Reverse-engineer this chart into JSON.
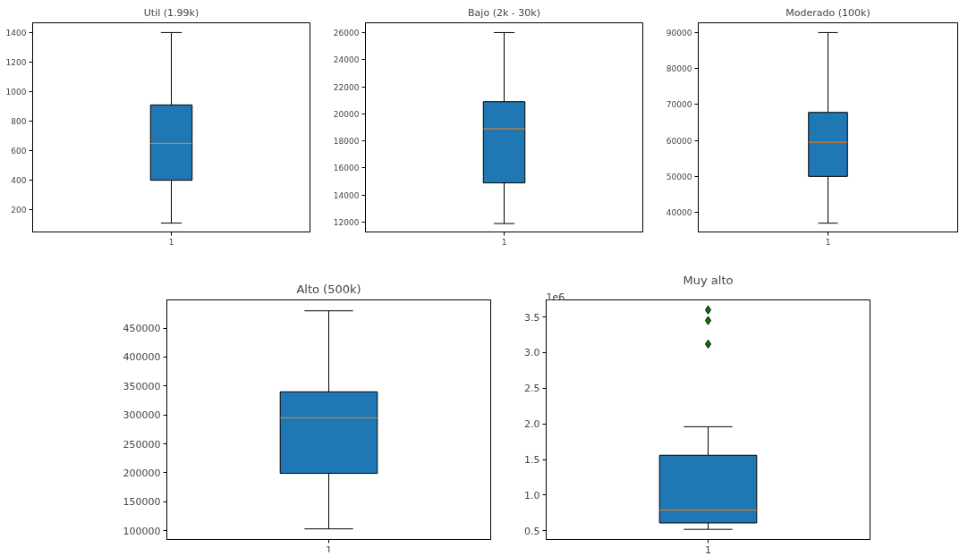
{
  "chart_data": [
    {
      "type": "box",
      "title": "Util (1.99k)",
      "categories": [
        "1"
      ],
      "series": [
        {
          "color": "#1f77b4",
          "boxes": [
            {
              "low": 110,
              "q1": 400,
              "median": 650,
              "q3": 910,
              "high": 1400
            }
          ]
        }
      ],
      "ylim": [
        50,
        1466
      ],
      "yticks": [
        200,
        400,
        600,
        800,
        1000,
        1200,
        1400
      ],
      "grid": false
    },
    {
      "type": "box",
      "title": "Bajo (2k - 30k)",
      "categories": [
        "1"
      ],
      "series": [
        {
          "color": "#1f77b4",
          "boxes": [
            {
              "low": 11900,
              "q1": 14900,
              "median": 18900,
              "q3": 20900,
              "high": 26000
            }
          ]
        }
      ],
      "ylim": [
        11277,
        26723
      ],
      "yticks": [
        12000,
        14000,
        16000,
        18000,
        20000,
        22000,
        24000,
        26000
      ],
      "grid": false
    },
    {
      "type": "box",
      "title": "Moderado (100k)",
      "categories": [
        "1"
      ],
      "series": [
        {
          "color": "#1f77b4",
          "boxes": [
            {
              "low": 37000,
              "q1": 50000,
              "median": 59500,
              "q3": 67800,
              "high": 90000
            }
          ]
        }
      ],
      "ylim": [
        34550,
        92720
      ],
      "yticks": [
        40000,
        50000,
        60000,
        70000,
        80000,
        90000
      ],
      "grid": false
    },
    {
      "type": "box",
      "title": "Alto (500k)",
      "categories": [
        "1"
      ],
      "series": [
        {
          "color": "#1f77b4",
          "boxes": [
            {
              "low": 103000,
              "q1": 199000,
              "median": 295000,
              "q3": 340000,
              "high": 480000
            }
          ]
        }
      ],
      "ylim": [
        84700,
        498900
      ],
      "yticks": [
        100000,
        150000,
        200000,
        250000,
        300000,
        350000,
        400000,
        450000
      ],
      "grid": false
    },
    {
      "type": "box",
      "title": "Muy alto",
      "categories": [
        "1"
      ],
      "series": [
        {
          "color": "#1f77b4",
          "boxes": [
            {
              "low": 0.52,
              "q1": 0.61,
              "median": 0.79,
              "q3": 1.56,
              "high": 1.96,
              "outliers": [
                3.6,
                3.45,
                3.12
              ]
            }
          ]
        }
      ],
      "ylim": [
        0.378,
        3.74
      ],
      "yticks": [
        {
          "value": 0.5,
          "label": "0.5"
        },
        {
          "value": 1.0,
          "label": "1.0"
        },
        {
          "value": 1.5,
          "label": "1.5"
        },
        {
          "value": 2.0,
          "label": "2.0"
        },
        {
          "value": 2.5,
          "label": "2.5"
        },
        {
          "value": 3.0,
          "label": "3.0"
        },
        {
          "value": 3.5,
          "label": "3.5"
        }
      ],
      "marker": "diamond",
      "annotations": [
        "1e6"
      ],
      "grid": false
    }
  ]
}
